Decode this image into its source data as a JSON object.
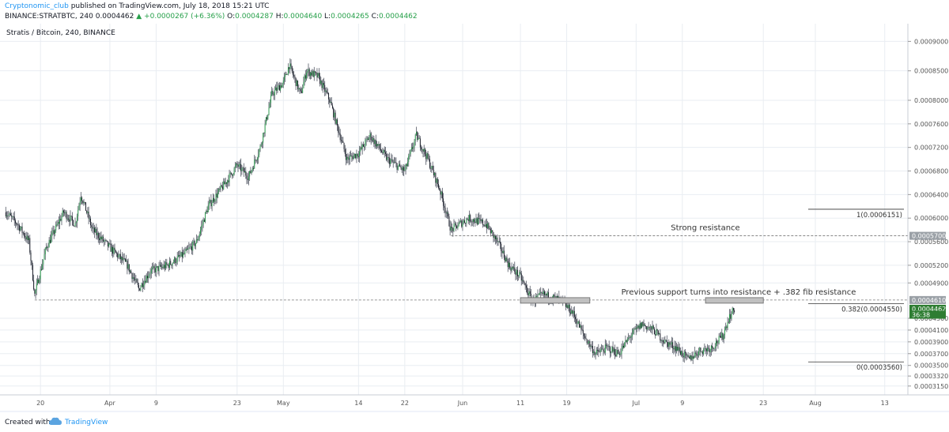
{
  "header": {
    "author": "Cryptonomic_club",
    "published": " published on TradingView.com, July 18, 2018 15:21 UTC",
    "symbol": "BINANCE:STRATBTC, 240",
    "last": "0.0004462",
    "change_arrow": "▲",
    "change": "+0.0000267 (+6.36%)",
    "o_label": "O:",
    "o": "0.0004287",
    "h_label": "H:",
    "h": "0.0004640",
    "l_label": "L:",
    "l": "0.0004265",
    "c_label": "C:",
    "c": "0.0004462"
  },
  "footer": {
    "created": "Created with",
    "brand": "TradingView",
    "logo_icon": "tradingview-cloud-icon"
  },
  "colors": {
    "up": "#27a04a",
    "down": "#131722",
    "wick": "#555a66",
    "accent": "#2196f3",
    "grid": "#e9edf2",
    "line": "#333333"
  },
  "chart_data": {
    "type": "candlestick",
    "title": "Stratis / Bitcoin, 240, BINANCE",
    "ylim": [
      0.0003,
      0.00093
    ],
    "y_ticks": [
      "0.0003150",
      "0.0003320",
      "0.0003500",
      "0.0003700",
      "0.0003900",
      "0.0004100",
      "0.0004300",
      "0.0004900",
      "0.0005200",
      "0.0005600",
      "0.0006000",
      "0.0006400",
      "0.0006800",
      "0.0007200",
      "0.0007600",
      "0.0008000",
      "0.0008500",
      "0.0009000"
    ],
    "x_ticks": [
      {
        "label": "20",
        "date": "2018-03-20"
      },
      {
        "label": "Apr",
        "date": "2018-04-01"
      },
      {
        "label": "9",
        "date": "2018-04-09"
      },
      {
        "label": "23",
        "date": "2018-04-23"
      },
      {
        "label": "May",
        "date": "2018-05-01"
      },
      {
        "label": "14",
        "date": "2018-05-14"
      },
      {
        "label": "22",
        "date": "2018-05-22"
      },
      {
        "label": "Jun",
        "date": "2018-06-01"
      },
      {
        "label": "11",
        "date": "2018-06-11"
      },
      {
        "label": "19",
        "date": "2018-06-19"
      },
      {
        "label": "Jul",
        "date": "2018-07-01"
      },
      {
        "label": "9",
        "date": "2018-07-09"
      },
      {
        "label": "23",
        "date": "2018-07-23"
      },
      {
        "label": "Aug",
        "date": "2018-08-01"
      },
      {
        "label": "13",
        "date": "2018-08-13"
      }
    ],
    "price_path": [
      [
        "2018-03-14",
        0.00061
      ],
      [
        "2018-03-16",
        0.00059
      ],
      [
        "2018-03-18",
        0.00056
      ],
      [
        "2018-03-19",
        0.00047
      ],
      [
        "2018-03-21",
        0.00055
      ],
      [
        "2018-03-24",
        0.00061
      ],
      [
        "2018-03-26",
        0.00059
      ],
      [
        "2018-03-27",
        0.00064
      ],
      [
        "2018-03-29",
        0.00058
      ],
      [
        "2018-04-01",
        0.00055
      ],
      [
        "2018-04-04",
        0.00052
      ],
      [
        "2018-04-06",
        0.00048
      ],
      [
        "2018-04-08",
        0.00051
      ],
      [
        "2018-04-11",
        0.00052
      ],
      [
        "2018-04-14",
        0.00054
      ],
      [
        "2018-04-16",
        0.00056
      ],
      [
        "2018-04-18",
        0.00062
      ],
      [
        "2018-04-21",
        0.00066
      ],
      [
        "2018-04-23",
        0.00069
      ],
      [
        "2018-04-25",
        0.00067
      ],
      [
        "2018-04-27",
        0.00072
      ],
      [
        "2018-04-29",
        0.00081
      ],
      [
        "2018-05-01",
        0.00083
      ],
      [
        "2018-05-02",
        0.00086
      ],
      [
        "2018-05-04",
        0.00081
      ],
      [
        "2018-05-05",
        0.00085
      ],
      [
        "2018-05-07",
        0.00084
      ],
      [
        "2018-05-09",
        0.0008
      ],
      [
        "2018-05-12",
        0.0007
      ],
      [
        "2018-05-14",
        0.00071
      ],
      [
        "2018-05-16",
        0.00074
      ],
      [
        "2018-05-19",
        0.0007
      ],
      [
        "2018-05-22",
        0.00068
      ],
      [
        "2018-05-24",
        0.00074
      ],
      [
        "2018-05-26",
        0.0007
      ],
      [
        "2018-05-28",
        0.00065
      ],
      [
        "2018-05-30",
        0.00058
      ],
      [
        "2018-06-02",
        0.0006
      ],
      [
        "2018-06-05",
        0.00059
      ],
      [
        "2018-06-07",
        0.00056
      ],
      [
        "2018-06-09",
        0.00052
      ],
      [
        "2018-06-11",
        0.0005
      ],
      [
        "2018-06-13",
        0.00046
      ],
      [
        "2018-06-15",
        0.00047
      ],
      [
        "2018-06-18",
        0.00046
      ],
      [
        "2018-06-20",
        0.00044
      ],
      [
        "2018-06-22",
        0.0004
      ],
      [
        "2018-06-24",
        0.00037
      ],
      [
        "2018-06-26",
        0.00038
      ],
      [
        "2018-06-28",
        0.00037
      ],
      [
        "2018-06-30",
        0.0004
      ],
      [
        "2018-07-02",
        0.00042
      ],
      [
        "2018-07-04",
        0.00041
      ],
      [
        "2018-07-06",
        0.00039
      ],
      [
        "2018-07-08",
        0.00038
      ],
      [
        "2018-07-10",
        0.00036
      ],
      [
        "2018-07-12",
        0.000375
      ],
      [
        "2018-07-14",
        0.00038
      ],
      [
        "2018-07-16",
        0.0004
      ],
      [
        "2018-07-17",
        0.00043
      ],
      [
        "2018-07-18",
        0.000446
      ]
    ],
    "price_labels": [
      {
        "text": "0.0005700",
        "value": 0.00057,
        "style": "gray"
      },
      {
        "text": "0.0004610",
        "value": 0.000461,
        "style": "gray"
      },
      {
        "text": "0.0004462",
        "value": 0.0004462,
        "style": "green"
      },
      {
        "text": "36:38",
        "value": 0.000436,
        "style": "green"
      }
    ],
    "levels": [
      {
        "value": 0.00057,
        "from": "2018-05-30",
        "note": "Strong resistance"
      },
      {
        "value": 0.000461,
        "from": "2018-03-19",
        "note": "Previous support turns into resistance + .382 fib resistance"
      }
    ],
    "fib": [
      {
        "text": "1(0.0006151)",
        "value": 0.0006151
      },
      {
        "text": "0.382(0.0004550)",
        "value": 0.000455
      },
      {
        "text": "0(0.0003560)",
        "value": 0.000356
      }
    ],
    "zones": [
      {
        "from": "2018-06-11",
        "to": "2018-06-23",
        "value": 0.000461
      },
      {
        "from": "2018-07-13",
        "to": "2018-07-23",
        "value": 0.000461
      }
    ]
  }
}
